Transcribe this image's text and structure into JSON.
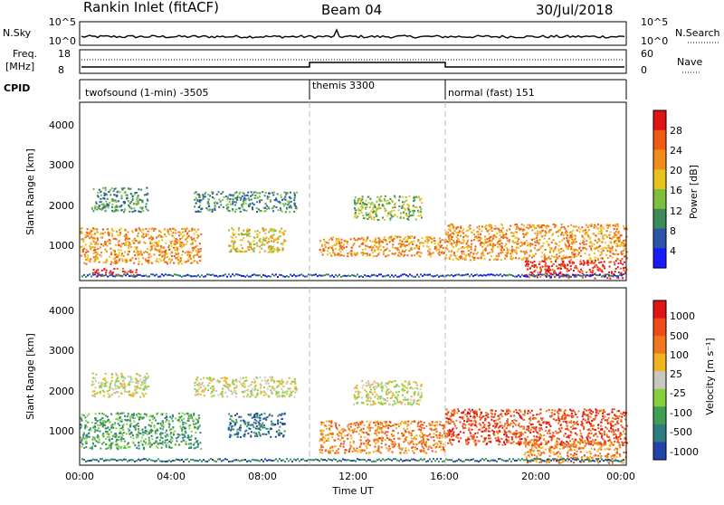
{
  "header": {
    "station": "Rankin Inlet (fitACF)",
    "beam": "Beam 04",
    "date": "30/Jul/2018"
  },
  "nsky_panel": {
    "left_label": "N.Sky",
    "right_label": "N.Search",
    "left_ticks": [
      "10^5",
      "10^0"
    ],
    "right_ticks": [
      "10^5",
      "10^0"
    ]
  },
  "freq_panel": {
    "left_label_top": "Freq.",
    "left_label_bottom": "[MHz]",
    "right_label": "Nave",
    "left_ticks": [
      "18",
      "8"
    ],
    "right_ticks": [
      "60",
      "0"
    ]
  },
  "cpid_panel": {
    "label": "CPID",
    "segments": [
      {
        "name": "twofsound (1-min) -3505",
        "start_hour": 0,
        "end_hour": 10
      },
      {
        "name": "themis 3300",
        "start_hour": 10,
        "end_hour": 16
      },
      {
        "name": "normal (fast) 151",
        "start_hour": 16,
        "end_hour": 24
      }
    ]
  },
  "power_panel": {
    "ylabel": "Slant Range [km]",
    "yticks": [
      "4000",
      "3000",
      "2000",
      "1000"
    ],
    "colorbar_label": "Power [dB]",
    "colorbar_ticks": [
      "28",
      "24",
      "20",
      "16",
      "12",
      "8",
      "4"
    ],
    "colors": [
      "#1a1aff",
      "#2a55a8",
      "#3c8c5a",
      "#7dc040",
      "#e8c31a",
      "#f08c1a",
      "#f05a14",
      "#e01414"
    ]
  },
  "velocity_panel": {
    "ylabel": "Slant Range [km]",
    "yticks": [
      "4000",
      "3000",
      "2000",
      "1000"
    ],
    "colorbar_label": "Velocity [m s⁻¹]",
    "colorbar_ticks": [
      "1000",
      "500",
      "100",
      "25",
      "-25",
      "-100",
      "-500",
      "-1000"
    ],
    "colors": [
      "#2244aa",
      "#2e7c80",
      "#3ea050",
      "#86d040",
      "#c8c8c0",
      "#f0b420",
      "#f0781c",
      "#f04a18",
      "#e01414"
    ]
  },
  "xaxis": {
    "label": "Time UT",
    "ticks": [
      "00:00",
      "04:00",
      "08:00",
      "12:00",
      "16:00",
      "20:00",
      "00:00"
    ]
  },
  "chart_data": {
    "type": "heatmap",
    "x_range_hours": [
      0,
      24
    ],
    "y_range_km": [
      180,
      4600
    ],
    "mode_change_hours": [
      10,
      16
    ],
    "power_scatter_bands": [
      {
        "t0": 0.0,
        "t1": 5.3,
        "r0": 600,
        "r1": 1500,
        "level": 5
      },
      {
        "t0": 6.5,
        "t1": 9.0,
        "r0": 900,
        "r1": 1500,
        "level": 4
      },
      {
        "t0": 10.5,
        "t1": 16.0,
        "r0": 800,
        "r1": 1300,
        "level": 5
      },
      {
        "t0": 16.0,
        "t1": 24.0,
        "r0": 700,
        "r1": 1600,
        "level": 5
      },
      {
        "t0": 19.5,
        "t1": 24.0,
        "r0": 250,
        "r1": 700,
        "level": 7
      },
      {
        "t0": 0.5,
        "t1": 2.5,
        "r0": 300,
        "r1": 500,
        "level": 7
      },
      {
        "t0": 0.5,
        "t1": 3.0,
        "r0": 1900,
        "r1": 2500,
        "level": 2
      },
      {
        "t0": 5.0,
        "t1": 9.5,
        "r0": 1900,
        "r1": 2400,
        "level": 2
      },
      {
        "t0": 12.0,
        "t1": 15.0,
        "r0": 1700,
        "r1": 2300,
        "level": 3
      }
    ],
    "velocity_scatter_bands": [
      {
        "t0": 0.0,
        "t1": 5.3,
        "r0": 600,
        "r1": 1500,
        "level": 2
      },
      {
        "t0": 6.5,
        "t1": 9.0,
        "r0": 900,
        "r1": 1500,
        "level": 1
      },
      {
        "t0": 10.5,
        "t1": 16.0,
        "r0": 500,
        "r1": 1300,
        "level": 6
      },
      {
        "t0": 16.0,
        "t1": 24.0,
        "r0": 700,
        "r1": 1600,
        "level": 7
      },
      {
        "t0": 19.5,
        "t1": 24.0,
        "r0": 250,
        "r1": 800,
        "level": 6
      },
      {
        "t0": 0.5,
        "t1": 3.0,
        "r0": 1900,
        "r1": 2500,
        "level": 4
      },
      {
        "t0": 5.0,
        "t1": 9.5,
        "r0": 1900,
        "r1": 2400,
        "level": 4
      },
      {
        "t0": 12.0,
        "t1": 15.0,
        "r0": 1700,
        "r1": 2300,
        "level": 4
      }
    ]
  }
}
